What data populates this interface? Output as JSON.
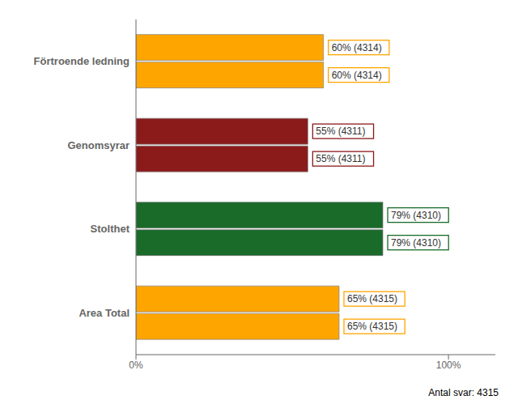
{
  "chart_data": {
    "type": "bar",
    "orientation": "horizontal",
    "categories": [
      "Förtroende ledning",
      "Genomsyrar",
      "Stolthet",
      "Area Total"
    ],
    "series": [
      {
        "values": [
          60,
          55,
          79,
          65
        ],
        "value_labels": [
          "60% (4314)",
          "55% (4311)",
          "79% (4310)",
          "65% (4315)"
        ],
        "colors": [
          "#FFA500",
          "#8B1A1A",
          "#1A6B2A",
          "#FFA500"
        ]
      },
      {
        "values": [
          60,
          55,
          79,
          65
        ],
        "value_labels": [
          "60% (4314)",
          "55% (4311)",
          "79% (4310)",
          "65% (4315)"
        ],
        "colors": [
          "#FFA500",
          "#8B1A1A",
          "#1A6B2A",
          "#FFA500"
        ]
      }
    ],
    "xlim": [
      0,
      115
    ],
    "xticks": [
      {
        "value": 0,
        "label": "0%"
      },
      {
        "value": 100,
        "label": "100%"
      }
    ],
    "data_labels": true,
    "grid": false,
    "annotations": [
      "Antal svar: 4315"
    ]
  }
}
